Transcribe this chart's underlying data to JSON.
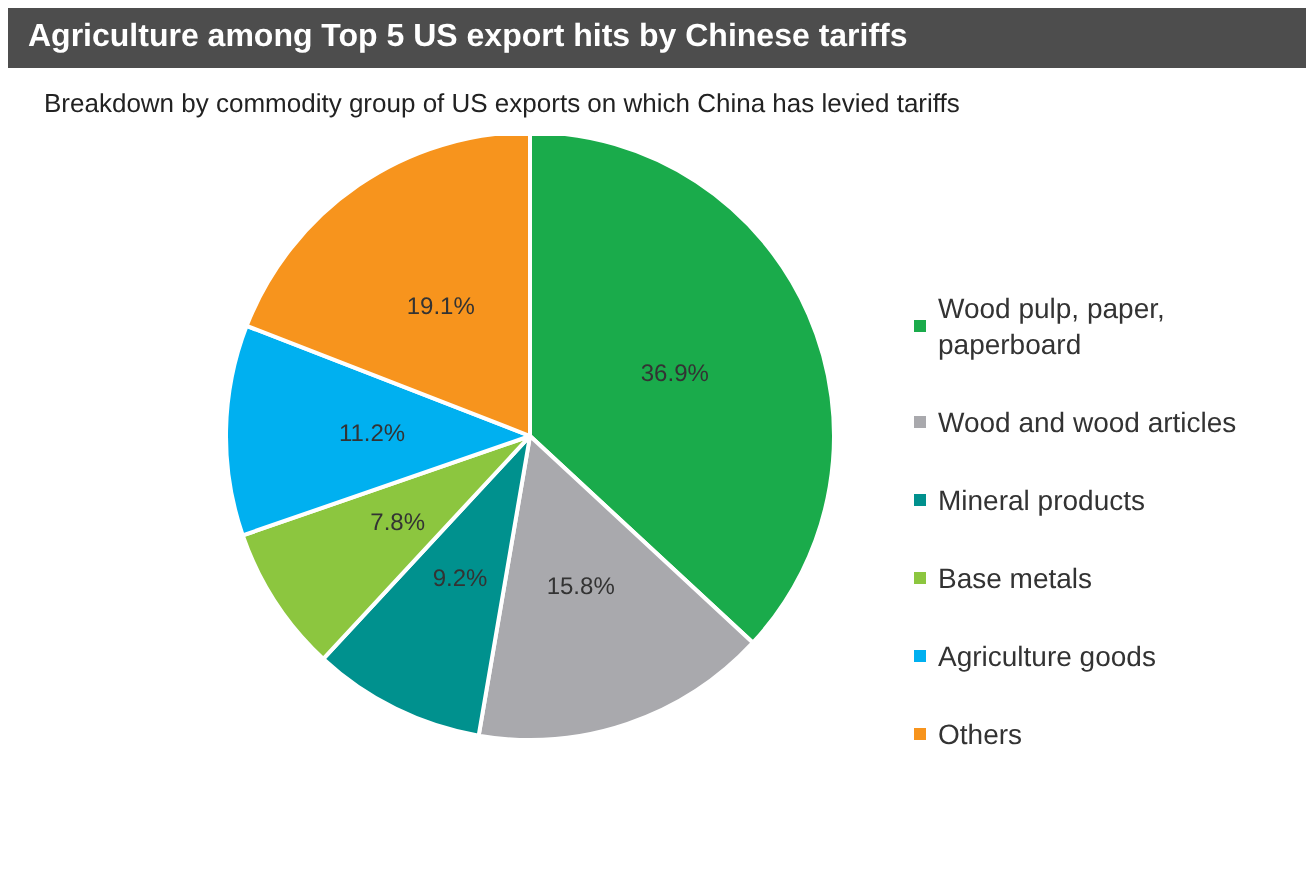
{
  "chart_data": {
    "type": "pie",
    "title": "Agriculture among Top 5 US export hits by Chinese tariffs",
    "subtitle": "Breakdown by commodity group of US exports on which China has levied tariffs",
    "categories": [
      "Wood pulp, paper, paperboard",
      "Wood and wood articles",
      "Mineral products",
      "Base metals",
      "Agriculture goods",
      "Others"
    ],
    "values": [
      36.9,
      15.8,
      9.2,
      7.8,
      11.2,
      19.1
    ],
    "colors": [
      "#1aab4b",
      "#a9a9ad",
      "#00918e",
      "#8cc63f",
      "#00b0f0",
      "#f7941d"
    ],
    "value_labels": [
      "36.9%",
      "15.8%",
      "9.2%",
      "7.8%",
      "11.2%",
      "19.1%"
    ],
    "legend": "right"
  }
}
